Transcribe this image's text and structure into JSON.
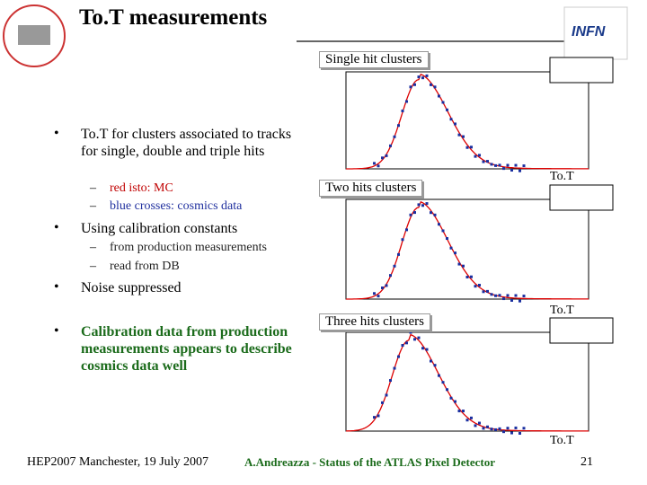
{
  "header": {
    "title": "To.T measurements"
  },
  "bullets": [
    {
      "text": "To.T for clusters associated to tracks for single, double and triple hits",
      "subs": [
        "red isto: MC",
        "blue crosses: cosmics data"
      ]
    },
    {
      "text": "Using calibration constants",
      "subs": [
        "from production measurements",
        "read from DB"
      ]
    },
    {
      "text": "Noise suppressed"
    },
    {
      "text": "Calibration data from production measurements appears to describe cosmics data well"
    }
  ],
  "plots": [
    {
      "title": "Single hit clusters",
      "xlabel": "To.T"
    },
    {
      "title": "Two hits clusters",
      "xlabel": "To.T"
    },
    {
      "title": "Three hits clusters",
      "xlabel": "To.T"
    }
  ],
  "footer": {
    "left": "HEP2007 Manchester, 19 July 2007",
    "center": "A.Andreazza - Status of the ATLAS Pixel Detector",
    "page": "21"
  }
}
